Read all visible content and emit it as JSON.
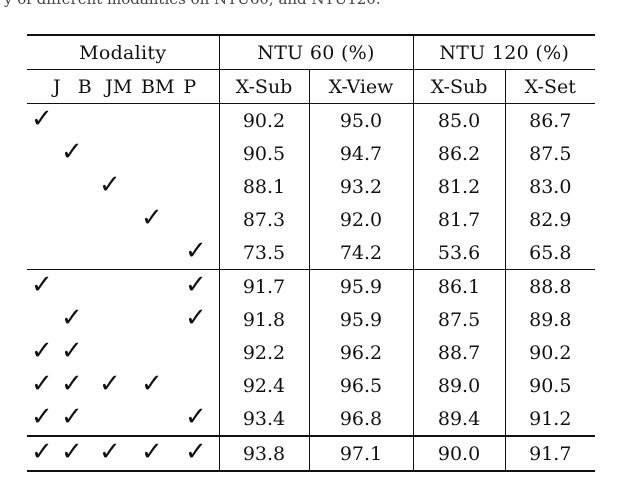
{
  "caption_fragment": "y of different modalities on NTU60, and NTU120.",
  "table": {
    "header_group1": "Modality",
    "header_group2_name": "NTU 60",
    "header_group2_unit": "(%)",
    "header_group3_name": "NTU 120",
    "header_group3_unit": "(%)",
    "modalities": [
      "J",
      "B",
      "JM",
      "BM",
      "P"
    ],
    "metrics": [
      "X-Sub",
      "X-View",
      "X-Sub",
      "X-Set"
    ],
    "check_symbol": "✓",
    "rows": [
      {
        "mods": [
          1,
          0,
          0,
          0,
          0
        ],
        "values": [
          "90.2",
          "95.0",
          "85.0",
          "86.7"
        ],
        "bold": false
      },
      {
        "mods": [
          0,
          1,
          0,
          0,
          0
        ],
        "values": [
          "90.5",
          "94.7",
          "86.2",
          "87.5"
        ],
        "bold": false
      },
      {
        "mods": [
          0,
          0,
          1,
          0,
          0
        ],
        "values": [
          "88.1",
          "93.2",
          "81.2",
          "83.0"
        ],
        "bold": false
      },
      {
        "mods": [
          0,
          0,
          0,
          1,
          0
        ],
        "values": [
          "87.3",
          "92.0",
          "81.7",
          "82.9"
        ],
        "bold": false
      },
      {
        "mods": [
          0,
          0,
          0,
          0,
          1
        ],
        "values": [
          "73.5",
          "74.2",
          "53.6",
          "65.8"
        ],
        "bold": false
      },
      {
        "mods": [
          1,
          0,
          0,
          0,
          1
        ],
        "values": [
          "91.7",
          "95.9",
          "86.1",
          "88.8"
        ],
        "bold": false
      },
      {
        "mods": [
          0,
          1,
          0,
          0,
          1
        ],
        "values": [
          "91.8",
          "95.9",
          "87.5",
          "89.8"
        ],
        "bold": false
      },
      {
        "mods": [
          1,
          1,
          0,
          0,
          0
        ],
        "values": [
          "92.2",
          "96.2",
          "88.7",
          "90.2"
        ],
        "bold": false
      },
      {
        "mods": [
          1,
          1,
          1,
          1,
          0
        ],
        "values": [
          "92.4",
          "96.5",
          "89.0",
          "90.5"
        ],
        "bold": false
      },
      {
        "mods": [
          1,
          1,
          0,
          0,
          1
        ],
        "values": [
          "93.4",
          "96.8",
          "89.4",
          "91.2"
        ],
        "bold": false
      },
      {
        "mods": [
          1,
          1,
          1,
          1,
          1
        ],
        "values": [
          "93.8",
          "97.1",
          "90.0",
          "91.7"
        ],
        "bold": true
      }
    ]
  }
}
